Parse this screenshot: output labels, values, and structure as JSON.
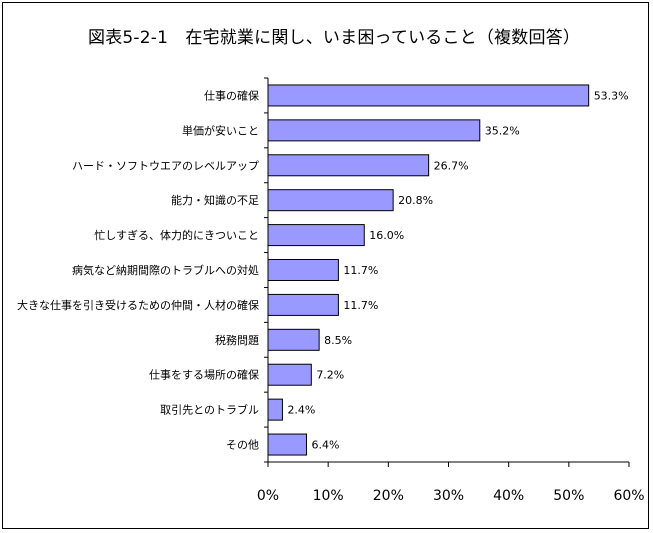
{
  "chart_data": {
    "type": "bar",
    "orientation": "horizontal",
    "title": "図表5-2-1　在宅就業に関し、いま困っていること（複数回答）",
    "categories": [
      "仕事の確保",
      "単価が安いこと",
      "ハード・ソフトウエアのレベルアップ",
      "能力・知識の不足",
      "忙しすぎる、体力的にきついこと",
      "病気など納期間際のトラブルへの対処",
      "大きな仕事を引き受けるための仲間・人材の確保",
      "税務問題",
      "仕事をする場所の確保",
      "取引先とのトラブル",
      "その他"
    ],
    "values": [
      53.3,
      35.2,
      26.7,
      20.8,
      16.0,
      11.7,
      11.7,
      8.5,
      7.2,
      2.4,
      6.4
    ],
    "value_labels": [
      "53.3%",
      "35.2%",
      "26.7%",
      "20.8%",
      "16.0%",
      "11.7%",
      "11.7%",
      "8.5%",
      "7.2%",
      "2.4%",
      "6.4%"
    ],
    "xlim": [
      0,
      60
    ],
    "ticks": [
      0,
      10,
      20,
      30,
      40,
      50,
      60
    ],
    "tick_labels": [
      "0%",
      "10%",
      "20%",
      "30%",
      "40%",
      "50%",
      "60%"
    ],
    "xlabel": "",
    "ylabel": "",
    "grid": false,
    "colors": {
      "bar_fill": "#9999ff",
      "bar_stroke": "#000000"
    }
  }
}
